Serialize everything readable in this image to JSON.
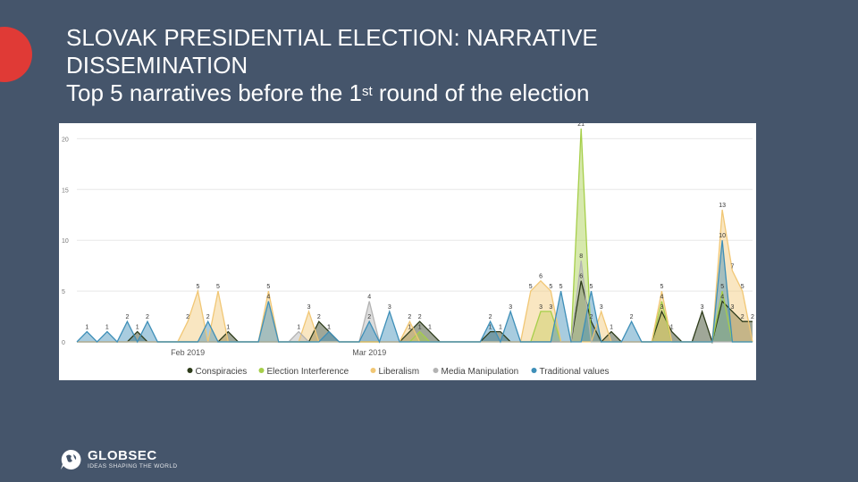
{
  "slide": {
    "title_line1": "SLOVAK PRESIDENTIAL ELECTION: NARRATIVE",
    "title_line2": "DISSEMINATION",
    "subtitle_pre": "Top 5 narratives before the 1",
    "subtitle_sup": "st",
    "subtitle_post": " round of the election",
    "accent_color": "#e03a36",
    "background_color": "#45556b"
  },
  "logo": {
    "name": "GLOBSEC",
    "tagline": "IDEAS SHAPING THE WORLD",
    "icon": "globe-speech-bubble-icon"
  },
  "chart_data": {
    "type": "area",
    "ylim": [
      0,
      21
    ],
    "yticks": [
      0,
      5,
      10,
      15,
      20
    ],
    "x_labels": [
      {
        "label": "Feb 2019",
        "index": 11
      },
      {
        "label": "Mar 2019",
        "index": 29
      }
    ],
    "legend_position": "bottom",
    "grid": true,
    "series": [
      {
        "name": "Conspiracies",
        "color": "#2d3b1a",
        "values": [
          0,
          0,
          0,
          0,
          0,
          0,
          1,
          0,
          0,
          0,
          0,
          0,
          0,
          0,
          0,
          1,
          0,
          0,
          0,
          0,
          0,
          0,
          0,
          0,
          2,
          1,
          0,
          0,
          0,
          0,
          0,
          0,
          0,
          1,
          2,
          1,
          0,
          0,
          0,
          0,
          0,
          1,
          1,
          0,
          0,
          0,
          0,
          0,
          0,
          0,
          6,
          2,
          0,
          1,
          0,
          0,
          0,
          0,
          3,
          1,
          0,
          0,
          3,
          0,
          4,
          3,
          2,
          2
        ]
      },
      {
        "name": "Election Interference",
        "color": "#a6cf4a",
        "values": [
          0,
          0,
          0,
          0,
          0,
          0,
          0,
          0,
          0,
          0,
          0,
          0,
          0,
          0,
          0,
          0,
          0,
          0,
          0,
          0,
          0,
          0,
          0,
          0,
          0,
          0,
          0,
          0,
          0,
          0,
          0,
          0,
          0,
          0,
          1,
          0,
          0,
          0,
          0,
          0,
          0,
          0,
          0,
          0,
          0,
          0,
          3,
          3,
          0,
          0,
          21,
          0,
          0,
          0,
          0,
          0,
          0,
          0,
          4,
          0,
          0,
          0,
          0,
          0,
          5,
          0,
          0,
          0
        ]
      },
      {
        "name": "Liberalism",
        "color": "#f1c775",
        "values": [
          0,
          0,
          0,
          0,
          0,
          0,
          0,
          0,
          0,
          0,
          0,
          2,
          5,
          0,
          5,
          0,
          0,
          0,
          0,
          5,
          0,
          0,
          0,
          3,
          0,
          0,
          0,
          0,
          0,
          0,
          0,
          0,
          0,
          2,
          0,
          0,
          0,
          0,
          0,
          0,
          0,
          0,
          0,
          0,
          0,
          5,
          6,
          5,
          0,
          0,
          0,
          0,
          3,
          0,
          0,
          0,
          0,
          0,
          5,
          0,
          0,
          0,
          0,
          0,
          13,
          7,
          5,
          0
        ]
      },
      {
        "name": "Media Manipulation",
        "color": "#b3b3b3",
        "values": [
          0,
          0,
          0,
          0,
          0,
          0,
          0,
          0,
          0,
          0,
          0,
          0,
          0,
          0,
          0,
          0,
          0,
          0,
          0,
          0,
          0,
          0,
          1,
          0,
          0,
          0,
          0,
          0,
          0,
          4,
          0,
          0,
          0,
          0,
          0,
          0,
          0,
          0,
          0,
          0,
          0,
          0,
          0,
          0,
          0,
          0,
          0,
          0,
          0,
          0,
          8,
          0,
          0,
          0,
          0,
          0,
          0,
          0,
          0,
          0,
          0,
          0,
          0,
          0,
          0,
          0,
          0,
          0
        ]
      },
      {
        "name": "Traditional values",
        "color": "#3e8fb8",
        "values": [
          0,
          1,
          0,
          1,
          0,
          2,
          0,
          2,
          0,
          0,
          0,
          0,
          0,
          2,
          0,
          0,
          0,
          0,
          0,
          4,
          0,
          0,
          0,
          0,
          0,
          1,
          0,
          0,
          0,
          2,
          0,
          3,
          0,
          0,
          0,
          0,
          0,
          0,
          0,
          0,
          0,
          2,
          0,
          3,
          0,
          0,
          0,
          0,
          5,
          0,
          0,
          5,
          0,
          0,
          0,
          2,
          0,
          0,
          0,
          0,
          0,
          0,
          0,
          0,
          10,
          0,
          0,
          0
        ]
      }
    ]
  }
}
